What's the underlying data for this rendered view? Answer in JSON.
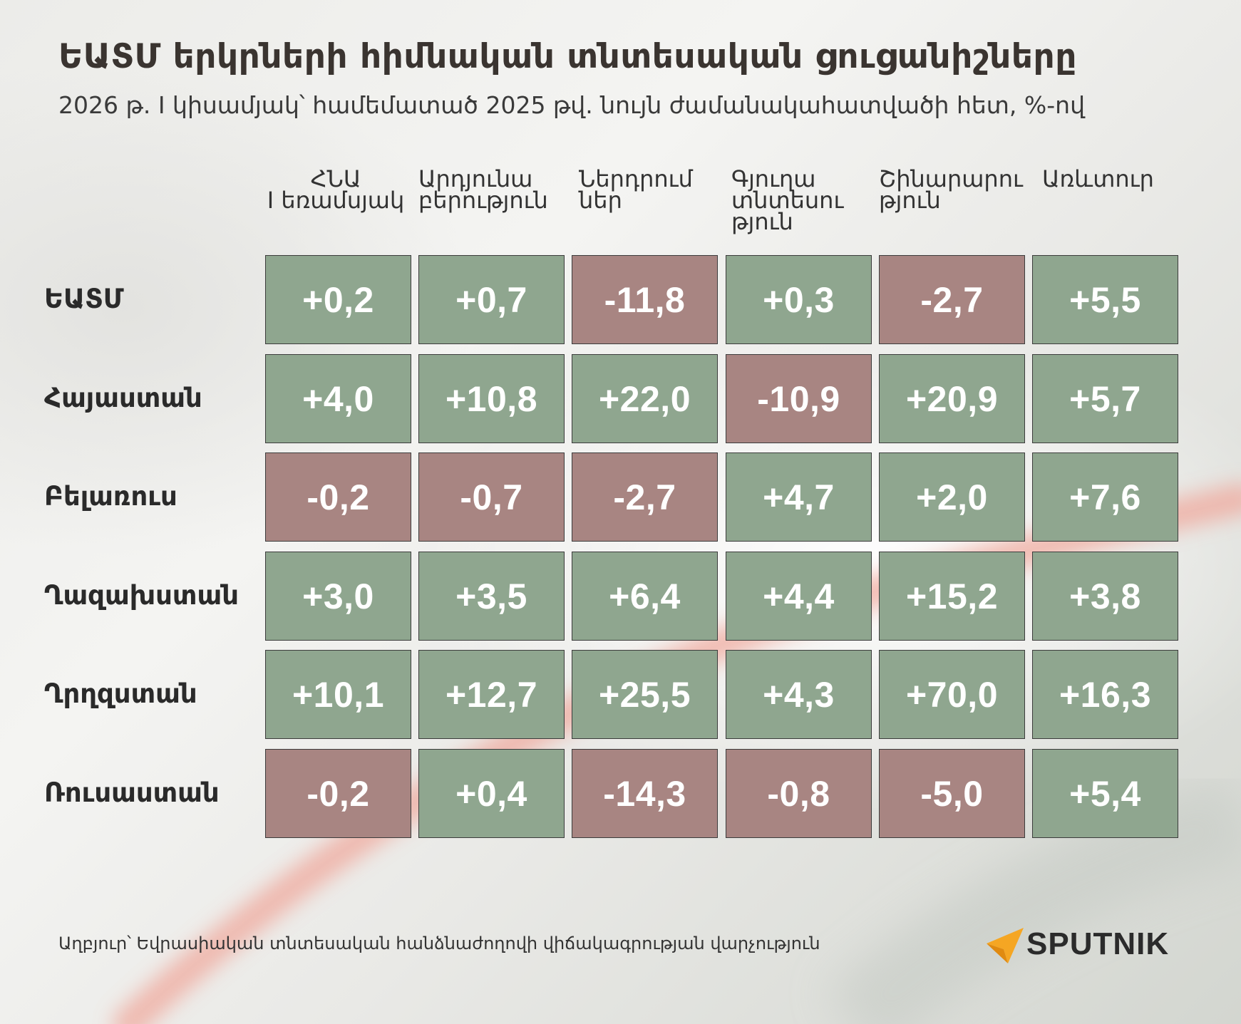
{
  "title": "ԵԱՏՄ երկրների հիմնական տնտեսական ցուցանիշները",
  "subtitle": "2026 թ. I կիսամյակ՝ համեմատած 2025 թվ. նույն ժամանակահատվածի հետ, %-ով",
  "source": "Աղբյուր՝ Եվրասիական տնտեսական հանձնաժողովի վիճակագրության վարչություն",
  "logo": {
    "text": "SPUTNIK",
    "icon": "sputnik-logo-icon",
    "accent": "#f5a623"
  },
  "colors": {
    "positive": "#8fa68f",
    "negative": "#a88582"
  },
  "chart_data": {
    "type": "table",
    "columns": [
      "ՀՆԱ I եռամսյակ",
      "Արդյունաբերություն",
      "Ներդրումներ",
      "Գյուղատնտեսություն",
      "Շինարարություն",
      "Առևտուր"
    ],
    "column_display": [
      [
        "ՀՆԱ",
        "I եռամսյակ"
      ],
      [
        "Արդյունա",
        "բերություն"
      ],
      [
        "Ներդրում",
        "ներ"
      ],
      [
        "Գյուղա",
        "տնտեսու",
        "թյուն"
      ],
      [
        "Շինարարու",
        "թյուն"
      ],
      [
        "Առևտուր"
      ]
    ],
    "rows": [
      {
        "label": "ԵԱՏՄ",
        "values": [
          "+0,2",
          "+0,7",
          "-11,8",
          "+0,3",
          "-2,7",
          "+5,5"
        ]
      },
      {
        "label": "Հայաստան",
        "values": [
          "+4,0",
          "+10,8",
          "+22,0",
          "-10,9",
          "+20,9",
          "+5,7"
        ]
      },
      {
        "label": "Բելառուս",
        "values": [
          "-0,2",
          "-0,7",
          "-2,7",
          "+4,7",
          "+2,0",
          "+7,6"
        ]
      },
      {
        "label": "Ղազախստան",
        "values": [
          "+3,0",
          "+3,5",
          "+6,4",
          "+4,4",
          "+15,2",
          "+3,8"
        ]
      },
      {
        "label": "Ղրղզստան",
        "values": [
          "+10,1",
          "+12,7",
          "+25,5",
          "+4,3",
          "+70,0",
          "+16,3"
        ]
      },
      {
        "label": "Ռուսաստան",
        "values": [
          "-0,2",
          "+0,4",
          "-14,3",
          "-0,8",
          "-5,0",
          "+5,4"
        ]
      }
    ]
  }
}
